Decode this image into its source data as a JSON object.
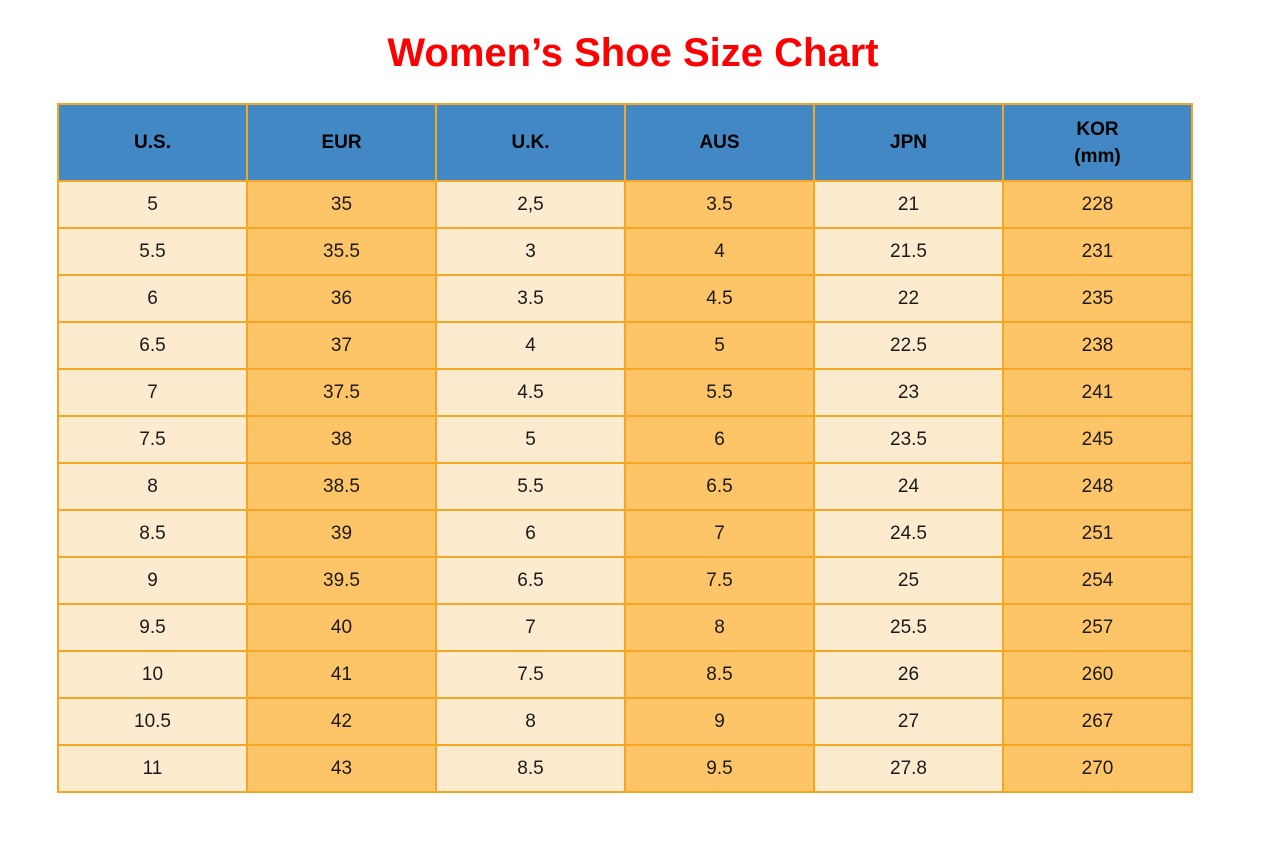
{
  "title": "Women’s Shoe Size Chart",
  "header": {
    "columns": [
      {
        "label": "U.S."
      },
      {
        "label": "EUR"
      },
      {
        "label": "U.K."
      },
      {
        "label": "AUS"
      },
      {
        "label": "JPN"
      },
      {
        "label": "KOR",
        "sub": "(mm)"
      }
    ]
  },
  "chart_data": {
    "type": "table",
    "title": "Women’s Shoe Size Chart",
    "columns": [
      "U.S.",
      "EUR",
      "U.K.",
      "AUS",
      "JPN",
      "KOR (mm)"
    ],
    "rows": [
      [
        "5",
        "35",
        "2,5",
        "3.5",
        "21",
        "228"
      ],
      [
        "5.5",
        "35.5",
        "3",
        "4",
        "21.5",
        "231"
      ],
      [
        "6",
        "36",
        "3.5",
        "4.5",
        "22",
        "235"
      ],
      [
        "6.5",
        "37",
        "4",
        "5",
        "22.5",
        "238"
      ],
      [
        "7",
        "37.5",
        "4.5",
        "5.5",
        "23",
        "241"
      ],
      [
        "7.5",
        "38",
        "5",
        "6",
        "23.5",
        "245"
      ],
      [
        "8",
        "38.5",
        "5.5",
        "6.5",
        "24",
        "248"
      ],
      [
        "8.5",
        "39",
        "6",
        "7",
        "24.5",
        "251"
      ],
      [
        "9",
        "39.5",
        "6.5",
        "7.5",
        "25",
        "254"
      ],
      [
        "9.5",
        "40",
        "7",
        "8",
        "25.5",
        "257"
      ],
      [
        "10",
        "41",
        "7.5",
        "8.5",
        "26",
        "260"
      ],
      [
        "10.5",
        "42",
        "8",
        "9",
        "27",
        "267"
      ],
      [
        "11",
        "43",
        "8.5",
        "9.5",
        "27.8",
        "270"
      ]
    ]
  },
  "colors": {
    "title_red": "#FF0000",
    "header_blue": "#4288C5",
    "cell_cream": "#FDEBD0",
    "cell_orange": "#FEC468",
    "border_orange": "#F5A623",
    "text": "#1A1A1A"
  }
}
